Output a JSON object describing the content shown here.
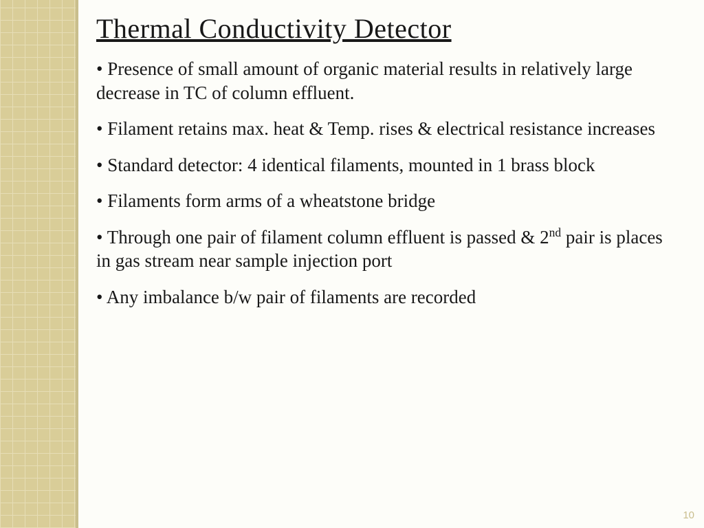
{
  "title": "Thermal Conductivity Detector",
  "bullets": [
    "Presence of small amount of organic material results in relatively large decrease in TC of column effluent.",
    "Filament retains max. heat & Temp. rises & electrical resistance increases",
    "Standard detector: 4 identical filaments, mounted in 1 brass block",
    "Filaments form arms of a wheatstone bridge",
    "Through one pair of filament column effluent is passed & 2<sup>nd</sup> pair is places in gas stream near sample injection port",
    "Any imbalance b/w pair of filaments are recorded"
  ],
  "page_number": "10",
  "colors": {
    "sidebar_bg": "#d9cd98",
    "sidebar_grid": "#e6ddb6",
    "text": "#181818",
    "pagenum": "#c9be8d",
    "page_bg": "#fdfdf9"
  }
}
